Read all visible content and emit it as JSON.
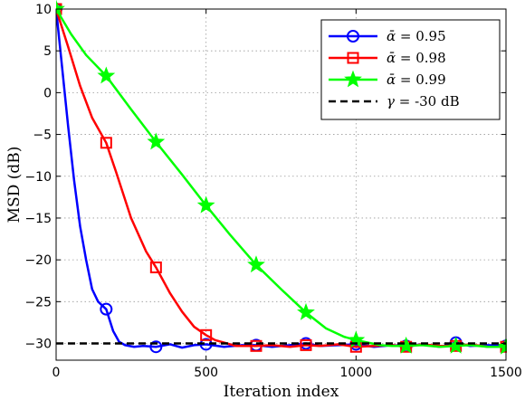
{
  "chart_data": {
    "type": "line",
    "xlabel": "Iteration index",
    "ylabel": "MSD (dB)",
    "xlim": [
      0,
      1500
    ],
    "ylim": [
      -32,
      10
    ],
    "xticks": [
      0,
      500,
      1000,
      1500
    ],
    "yticks": [
      10,
      5,
      0,
      -5,
      -10,
      -15,
      -20,
      -25,
      -30
    ],
    "ytick_labels": [
      "10",
      "5",
      "0",
      "−5",
      "−10",
      "−15",
      "−20",
      "−25",
      "−30"
    ],
    "grid": true,
    "legend_position": "top-right",
    "series": [
      {
        "name": "ᾱ = 0.95",
        "legend_label_prefix": "ᾱ",
        "legend_label_value": " = 0.95",
        "color": "#0000ff",
        "marker": "circle",
        "x": [
          0,
          20,
          40,
          60,
          80,
          100,
          120,
          140,
          167,
          190,
          210,
          230,
          260,
          290,
          333,
          380,
          420,
          460,
          500,
          560,
          620,
          667,
          720,
          780,
          833,
          880,
          940,
          1000,
          1060,
          1120,
          1167,
          1220,
          1280,
          1333,
          1380,
          1440,
          1500
        ],
        "y": [
          10,
          3,
          -4,
          -10.5,
          -16,
          -20,
          -23.5,
          -25,
          -25.9,
          -28.5,
          -29.8,
          -30.2,
          -30.4,
          -30.3,
          -30.4,
          -30.1,
          -30.5,
          -30.2,
          -30.1,
          -30.4,
          -30.2,
          -30.2,
          -30.4,
          -30.2,
          -30,
          -30.3,
          -30.2,
          -30.1,
          -30.4,
          -30.2,
          -30.3,
          -30.1,
          -30.4,
          -29.9,
          -30.3,
          -30.2,
          -30.3
        ],
        "marker_x": [
          0,
          167,
          333,
          500,
          667,
          833,
          1000,
          1167,
          1333,
          1500
        ],
        "marker_y": [
          10,
          -25.9,
          -30.4,
          -30.1,
          -30.2,
          -30,
          -30.1,
          -30.3,
          -29.9,
          -30.3
        ]
      },
      {
        "name": "ᾱ = 0.98",
        "legend_label_prefix": "ᾱ",
        "legend_label_value": " = 0.98",
        "color": "#ff0000",
        "marker": "square",
        "x": [
          0,
          40,
          80,
          120,
          167,
          200,
          250,
          300,
          333,
          380,
          420,
          460,
          500,
          530,
          560,
          600,
          667,
          720,
          780,
          833,
          880,
          940,
          1000,
          1060,
          1120,
          1167,
          1220,
          1280,
          1333,
          1380,
          1440,
          1500
        ],
        "y": [
          10,
          5.5,
          0.8,
          -3,
          -6,
          -9.5,
          -15,
          -19,
          -20.9,
          -24,
          -26.2,
          -28,
          -29,
          -29.6,
          -29.9,
          -30.3,
          -30.3,
          -30.2,
          -30.4,
          -30.2,
          -30.3,
          -30.1,
          -30.4,
          -30.3,
          -30.2,
          -30.4,
          -30.1,
          -30.3,
          -30.3,
          -30.1,
          -30.4,
          -30.4
        ],
        "marker_x": [
          0,
          167,
          333,
          500,
          667,
          833,
          1000,
          1167,
          1333,
          1500
        ],
        "marker_y": [
          10,
          -6,
          -20.9,
          -29,
          -30.3,
          -30.2,
          -30.4,
          -30.4,
          -30.3,
          -30.4
        ]
      },
      {
        "name": "ᾱ = 0.99",
        "legend_label_prefix": "ᾱ",
        "legend_label_value": " = 0.99",
        "color": "#00ff00",
        "marker": "star",
        "x": [
          0,
          50,
          100,
          167,
          250,
          333,
          420,
          500,
          580,
          667,
          750,
          833,
          900,
          960,
          1000,
          1040,
          1080,
          1120,
          1167,
          1220,
          1280,
          1333,
          1380,
          1440,
          1500
        ],
        "y": [
          10,
          7,
          4.5,
          2,
          -2,
          -5.9,
          -9.8,
          -13.5,
          -17,
          -20.6,
          -23.5,
          -26.3,
          -28.2,
          -29.2,
          -29.6,
          -29.9,
          -30.2,
          -30.3,
          -30.3,
          -30.2,
          -30.4,
          -30.3,
          -30.2,
          -30.4,
          -30.4
        ],
        "marker_x": [
          0,
          167,
          333,
          500,
          667,
          833,
          1000,
          1167,
          1333,
          1500
        ],
        "marker_y": [
          10,
          2,
          -5.9,
          -13.5,
          -20.6,
          -26.3,
          -29.6,
          -30.3,
          -30.3,
          -30.4
        ]
      },
      {
        "name": "γ = -30 dB",
        "legend_label_prefix": "γ",
        "legend_label_value": " = -30 dB",
        "color": "#000000",
        "marker": "none",
        "dashed": true,
        "x": [
          0,
          1500
        ],
        "y": [
          -30,
          -30
        ]
      }
    ]
  }
}
